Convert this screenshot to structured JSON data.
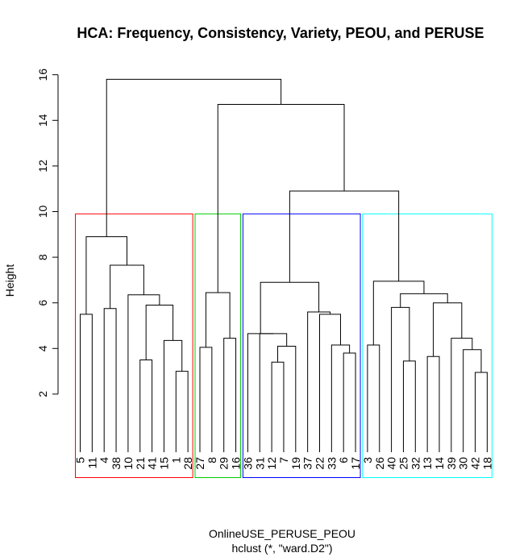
{
  "chart_data": {
    "type": "dendrogram",
    "title": "HCA: Frequency, Consistency, Variety, PEOU, and PERUSE",
    "xlabel": "OnlineUSE_PERUSE_PEOU",
    "sub": "hclust (*, \"ward.D2\")",
    "ylabel": "Height",
    "ylim": [
      0,
      16
    ],
    "yticks": [
      2,
      4,
      6,
      8,
      10,
      12,
      14,
      16
    ],
    "leaf_order": [
      "5",
      "11",
      "4",
      "38",
      "10",
      "21",
      "41",
      "15",
      "1",
      "28",
      "27",
      "8",
      "29",
      "16",
      "36",
      "31",
      "12",
      "7",
      "19",
      "37",
      "22",
      "33",
      "6",
      "17",
      "3",
      "26",
      "40",
      "25",
      "32",
      "13",
      "14",
      "39",
      "30",
      "42",
      "18"
    ],
    "merges": [
      {
        "a": "L:1",
        "b": "L:28",
        "height": 3.0
      },
      {
        "a": "L:15",
        "b": "M:0",
        "height": 4.35
      },
      {
        "a": "L:21",
        "b": "L:41",
        "height": 3.5
      },
      {
        "a": "M:2",
        "b": "M:1",
        "height": 5.9
      },
      {
        "a": "L:10",
        "b": "M:3",
        "height": 6.35
      },
      {
        "a": "L:4",
        "b": "L:38",
        "height": 5.75
      },
      {
        "a": "M:5",
        "b": "M:4",
        "height": 7.65
      },
      {
        "a": "L:5",
        "b": "L:11",
        "height": 5.5
      },
      {
        "a": "M:7",
        "b": "M:6",
        "height": 8.9
      },
      {
        "a": "L:27",
        "b": "L:8",
        "height": 4.05
      },
      {
        "a": "L:29",
        "b": "L:16",
        "height": 4.45
      },
      {
        "a": "M:9",
        "b": "M:10",
        "height": 6.45
      },
      {
        "a": "L:12",
        "b": "L:7",
        "height": 3.4
      },
      {
        "a": "M:12",
        "b": "L:19",
        "height": 4.1
      },
      {
        "a": "L:31",
        "b": "M:13",
        "height": 4.65
      },
      {
        "a": "L:36",
        "b": "M:14",
        "height": 4.65
      },
      {
        "a": "L:6",
        "b": "L:17",
        "height": 3.8
      },
      {
        "a": "M:16",
        "b": "L:33",
        "height": 4.15
      },
      {
        "a": "L:22",
        "b": "M:17",
        "height": 5.5
      },
      {
        "a": "L:37",
        "b": "M:18",
        "height": 5.6
      },
      {
        "a": "M:15",
        "b": "M:19",
        "height": 6.9
      },
      {
        "a": "L:3",
        "b": "L:26",
        "height": 4.15
      },
      {
        "a": "L:25",
        "b": "L:32",
        "height": 3.45
      },
      {
        "a": "L:40",
        "b": "M:22",
        "height": 5.8
      },
      {
        "a": "L:13",
        "b": "L:14",
        "height": 3.65
      },
      {
        "a": "L:42",
        "b": "L:18",
        "height": 2.95
      },
      {
        "a": "L:30",
        "b": "M:25",
        "height": 3.95
      },
      {
        "a": "L:39",
        "b": "M:26",
        "height": 4.45
      },
      {
        "a": "M:24",
        "b": "M:27",
        "height": 6.0
      },
      {
        "a": "M:23",
        "b": "M:28",
        "height": 6.4
      },
      {
        "a": "M:21",
        "b": "M:29",
        "height": 6.95
      },
      {
        "a": "M:20",
        "b": "M:30",
        "height": 10.9
      },
      {
        "a": "M:11",
        "b": "M:31",
        "height": 14.7
      },
      {
        "a": "M:8",
        "b": "M:32",
        "height": 15.8
      }
    ],
    "clusters": [
      {
        "from": 0,
        "to": 9,
        "color": "#ff0000"
      },
      {
        "from": 10,
        "to": 13,
        "color": "#00cd00"
      },
      {
        "from": 14,
        "to": 23,
        "color": "#0000ff"
      },
      {
        "from": 24,
        "to": 34,
        "color": "#00ffff"
      }
    ],
    "cut_height": 9.9
  }
}
